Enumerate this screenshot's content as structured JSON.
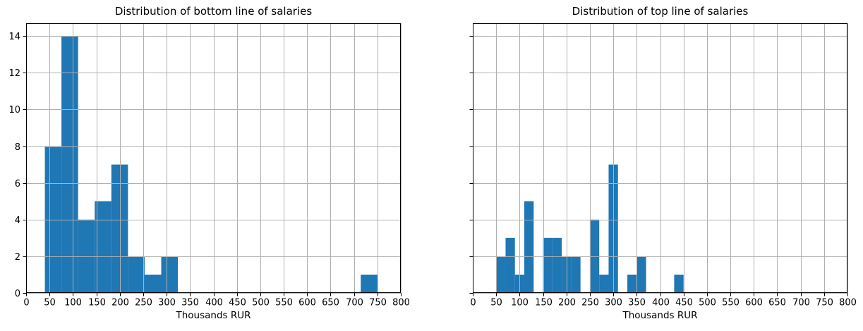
{
  "figure": {
    "background": "#ffffff"
  },
  "chart_data": [
    {
      "type": "bar",
      "subtype": "histogram",
      "title": "Distribution of bottom line of salaries",
      "xlabel": "Thousands RUR",
      "ylabel": "",
      "bar_color": "#1f77b4",
      "grid_color": "#b0b0b0",
      "axis_color": "#000000",
      "grid": true,
      "xlim": [
        0,
        800
      ],
      "ylim": [
        0,
        14.7
      ],
      "x_ticks": [
        0,
        50,
        100,
        150,
        200,
        250,
        300,
        350,
        400,
        450,
        500,
        550,
        600,
        650,
        700,
        750,
        800
      ],
      "y_ticks": [
        0,
        2,
        4,
        6,
        8,
        10,
        12,
        14
      ],
      "show_y_tick_labels": true,
      "bins": [
        {
          "from": 40,
          "to": 75.5,
          "count": 8
        },
        {
          "from": 75.5,
          "to": 111,
          "count": 14
        },
        {
          "from": 111,
          "to": 146.5,
          "count": 4
        },
        {
          "from": 146.5,
          "to": 182,
          "count": 5
        },
        {
          "from": 182,
          "to": 217.5,
          "count": 7
        },
        {
          "from": 217.5,
          "to": 253,
          "count": 2
        },
        {
          "from": 253,
          "to": 288.5,
          "count": 1
        },
        {
          "from": 288.5,
          "to": 324,
          "count": 2
        },
        {
          "from": 714.5,
          "to": 750,
          "count": 1
        }
      ]
    },
    {
      "type": "bar",
      "subtype": "histogram",
      "title": "Distribution of top line of salaries",
      "xlabel": "Thousands RUR",
      "ylabel": "",
      "bar_color": "#1f77b4",
      "grid_color": "#b0b0b0",
      "axis_color": "#000000",
      "grid": true,
      "xlim": [
        0,
        800
      ],
      "ylim": [
        0,
        14.7
      ],
      "x_ticks": [
        0,
        50,
        100,
        150,
        200,
        250,
        300,
        350,
        400,
        450,
        500,
        550,
        600,
        650,
        700,
        750,
        800
      ],
      "y_ticks": [
        0,
        2,
        4,
        6,
        8,
        10,
        12,
        14
      ],
      "show_y_tick_labels": false,
      "bins": [
        {
          "from": 50,
          "to": 70,
          "count": 2
        },
        {
          "from": 70,
          "to": 90,
          "count": 3
        },
        {
          "from": 90,
          "to": 110,
          "count": 1
        },
        {
          "from": 110,
          "to": 130,
          "count": 5
        },
        {
          "from": 150,
          "to": 170,
          "count": 3
        },
        {
          "from": 170,
          "to": 190,
          "count": 3
        },
        {
          "from": 190,
          "to": 210,
          "count": 2
        },
        {
          "from": 210,
          "to": 230,
          "count": 2
        },
        {
          "from": 250,
          "to": 270,
          "count": 4
        },
        {
          "from": 270,
          "to": 290,
          "count": 1
        },
        {
          "from": 290,
          "to": 310,
          "count": 7
        },
        {
          "from": 330,
          "to": 350,
          "count": 1
        },
        {
          "from": 350,
          "to": 370,
          "count": 2
        },
        {
          "from": 430,
          "to": 450,
          "count": 1
        }
      ]
    }
  ]
}
